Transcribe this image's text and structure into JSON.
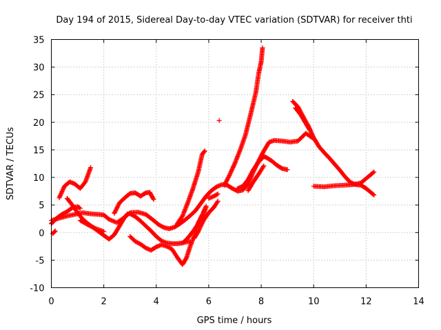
{
  "chart_data": {
    "type": "scatter",
    "title": "Day 194 of 2015, Sidereal Day-to-day VTEC variation (SDTVAR) for receiver thti",
    "xlabel": "GPS time / hours",
    "ylabel": "SDTVAR / TECUs",
    "xlim": [
      0,
      14
    ],
    "ylim": [
      -10,
      35
    ],
    "x_ticks": [
      0,
      2,
      4,
      6,
      8,
      10,
      12,
      14
    ],
    "y_ticks": [
      -10,
      -5,
      0,
      5,
      10,
      15,
      20,
      25,
      30,
      35
    ],
    "grid": true,
    "marker": "+",
    "color": "#ff0000",
    "series": [
      {
        "points": [
          [
            0.0,
            2.2
          ],
          [
            0.3,
            2.6
          ],
          [
            0.6,
            3.0
          ],
          [
            0.9,
            3.3
          ],
          [
            1.2,
            3.6
          ],
          [
            1.5,
            3.4
          ],
          [
            1.8,
            3.3
          ],
          [
            2.0,
            3.2
          ],
          [
            2.2,
            2.4
          ],
          [
            2.5,
            1.8
          ],
          [
            2.8,
            2.8
          ],
          [
            3.0,
            3.6
          ],
          [
            3.3,
            3.7
          ],
          [
            3.6,
            3.3
          ],
          [
            3.9,
            2.2
          ],
          [
            4.1,
            1.4
          ],
          [
            4.3,
            0.9
          ],
          [
            4.5,
            0.7
          ],
          [
            4.7,
            1.0
          ],
          [
            4.9,
            1.6
          ],
          [
            5.1,
            2.3
          ],
          [
            5.3,
            3.1
          ],
          [
            5.5,
            4.0
          ],
          [
            5.7,
            5.3
          ],
          [
            5.9,
            6.6
          ],
          [
            6.1,
            7.6
          ],
          [
            6.3,
            8.3
          ],
          [
            6.5,
            8.7
          ],
          [
            6.7,
            8.6
          ],
          [
            6.9,
            8.0
          ],
          [
            7.1,
            7.5
          ],
          [
            7.3,
            7.7
          ],
          [
            7.5,
            8.8
          ],
          [
            7.7,
            11.0
          ],
          [
            7.9,
            13.0
          ],
          [
            8.1,
            14.8
          ],
          [
            8.3,
            16.4
          ],
          [
            8.5,
            16.7
          ],
          [
            8.8,
            16.6
          ],
          [
            9.1,
            16.4
          ],
          [
            9.4,
            16.6
          ],
          [
            9.7,
            18.0
          ],
          [
            10.0,
            17.0
          ]
        ]
      },
      {
        "points": [
          [
            0.3,
            6.3
          ],
          [
            0.5,
            8.4
          ],
          [
            0.7,
            9.2
          ],
          [
            0.9,
            8.8
          ],
          [
            1.1,
            8.0
          ],
          [
            1.3,
            9.2
          ],
          [
            1.5,
            11.8
          ]
        ]
      },
      {
        "points": [
          [
            0.0,
            1.6
          ],
          [
            0.2,
            2.6
          ],
          [
            0.4,
            3.3
          ],
          [
            0.6,
            3.8
          ],
          [
            0.8,
            4.5
          ],
          [
            1.0,
            4.7
          ],
          [
            1.1,
            4.4
          ]
        ]
      },
      {
        "points": [
          [
            0.05,
            -0.2
          ],
          [
            0.15,
            0.3
          ]
        ]
      },
      {
        "points": [
          [
            0.6,
            6.2
          ],
          [
            0.8,
            5.0
          ],
          [
            1.0,
            3.6
          ],
          [
            1.2,
            2.4
          ],
          [
            1.4,
            1.6
          ],
          [
            1.6,
            0.9
          ],
          [
            1.8,
            0.2
          ],
          [
            2.0,
            -0.5
          ],
          [
            2.2,
            -1.2
          ],
          [
            2.4,
            -0.4
          ],
          [
            2.6,
            1.2
          ],
          [
            2.8,
            2.8
          ],
          [
            2.9,
            3.4
          ]
        ]
      },
      {
        "points": [
          [
            1.1,
            2.2
          ],
          [
            1.4,
            1.4
          ],
          [
            1.7,
            0.7
          ],
          [
            2.0,
            0.2
          ]
        ]
      },
      {
        "points": [
          [
            2.4,
            3.5
          ],
          [
            2.6,
            5.4
          ],
          [
            2.8,
            6.3
          ],
          [
            3.0,
            7.1
          ],
          [
            3.2,
            7.2
          ],
          [
            3.4,
            6.6
          ],
          [
            3.6,
            7.2
          ],
          [
            3.75,
            7.3
          ],
          [
            3.9,
            6.0
          ]
        ]
      },
      {
        "points": [
          [
            3.0,
            3.4
          ],
          [
            3.2,
            2.9
          ],
          [
            3.4,
            2.1
          ],
          [
            3.6,
            1.2
          ],
          [
            3.8,
            0.3
          ],
          [
            4.0,
            -0.7
          ],
          [
            4.2,
            -1.5
          ],
          [
            4.4,
            -1.9
          ],
          [
            4.6,
            -2.0
          ],
          [
            4.8,
            -2.0
          ],
          [
            5.0,
            -1.9
          ],
          [
            5.2,
            -1.0
          ],
          [
            5.4,
            0.2
          ],
          [
            5.6,
            1.6
          ],
          [
            5.8,
            3.4
          ],
          [
            5.9,
            4.6
          ]
        ]
      },
      {
        "points": [
          [
            3.0,
            -0.7
          ],
          [
            3.2,
            -1.6
          ],
          [
            3.4,
            -2.1
          ],
          [
            3.6,
            -2.8
          ],
          [
            3.8,
            -3.2
          ],
          [
            4.0,
            -2.6
          ],
          [
            4.2,
            -2.2
          ],
          [
            4.4,
            -2.5
          ],
          [
            4.6,
            -3.0
          ],
          [
            4.8,
            -4.5
          ],
          [
            5.0,
            -5.8
          ],
          [
            5.15,
            -4.6
          ],
          [
            5.3,
            -2.4
          ],
          [
            5.45,
            -0.6
          ],
          [
            5.6,
            1.8
          ],
          [
            5.75,
            3.2
          ],
          [
            5.9,
            4.8
          ]
        ]
      },
      {
        "points": [
          [
            4.8,
            1.6
          ],
          [
            5.0,
            3.0
          ],
          [
            5.2,
            5.4
          ],
          [
            5.4,
            8.0
          ],
          [
            5.6,
            11.0
          ],
          [
            5.75,
            14.2
          ],
          [
            5.85,
            14.8
          ]
        ]
      },
      {
        "points": [
          [
            5.05,
            -1.8
          ],
          [
            5.3,
            -1.6
          ]
        ]
      },
      {
        "points": [
          [
            5.45,
            -1.0
          ],
          [
            5.6,
            0.2
          ],
          [
            5.8,
            2.2
          ],
          [
            6.0,
            3.6
          ],
          [
            6.2,
            4.6
          ],
          [
            6.35,
            5.7
          ]
        ]
      },
      {
        "points": [
          [
            6.0,
            6.2
          ],
          [
            6.2,
            6.6
          ],
          [
            6.35,
            7.0
          ]
        ]
      },
      {
        "points": [
          [
            6.4,
            20.3
          ]
        ]
      },
      {
        "points": [
          [
            6.6,
            8.6
          ],
          [
            6.8,
            10.5
          ],
          [
            7.0,
            12.6
          ],
          [
            7.2,
            15.0
          ],
          [
            7.4,
            17.7
          ],
          [
            7.6,
            21.5
          ],
          [
            7.8,
            25.5
          ],
          [
            7.9,
            28.8
          ],
          [
            8.0,
            31.0
          ],
          [
            8.05,
            33.5
          ]
        ]
      },
      {
        "points": [
          [
            7.1,
            8.0
          ],
          [
            7.3,
            8.4
          ],
          [
            7.5,
            9.6
          ],
          [
            7.7,
            11.4
          ],
          [
            7.9,
            12.8
          ],
          [
            8.1,
            13.8
          ],
          [
            8.2,
            13.6
          ],
          [
            8.4,
            13.0
          ],
          [
            8.6,
            12.2
          ],
          [
            8.8,
            11.6
          ],
          [
            9.0,
            11.4
          ]
        ]
      },
      {
        "points": [
          [
            7.5,
            7.6
          ],
          [
            7.7,
            9.2
          ],
          [
            7.9,
            10.6
          ],
          [
            8.1,
            12.1
          ]
        ]
      },
      {
        "points": [
          [
            9.2,
            23.8
          ],
          [
            9.4,
            22.8
          ],
          [
            9.6,
            21.0
          ],
          [
            9.8,
            19.3
          ],
          [
            10.0,
            17.2
          ],
          [
            10.2,
            15.6
          ],
          [
            10.4,
            14.5
          ],
          [
            10.6,
            13.5
          ],
          [
            10.8,
            12.4
          ],
          [
            11.0,
            11.3
          ],
          [
            11.2,
            10.1
          ],
          [
            11.4,
            9.1
          ],
          [
            11.6,
            8.7
          ],
          [
            11.8,
            8.6
          ],
          [
            12.0,
            8.0
          ],
          [
            12.2,
            7.2
          ],
          [
            12.3,
            6.8
          ]
        ]
      },
      {
        "points": [
          [
            9.3,
            22.6
          ],
          [
            9.5,
            21.4
          ],
          [
            9.7,
            19.8
          ],
          [
            9.85,
            18.6
          ]
        ]
      },
      {
        "points": [
          [
            10.0,
            8.4
          ],
          [
            10.4,
            8.3
          ],
          [
            10.8,
            8.5
          ],
          [
            11.2,
            8.6
          ],
          [
            11.5,
            8.7
          ],
          [
            11.8,
            9.0
          ],
          [
            12.0,
            9.8
          ],
          [
            12.2,
            10.6
          ],
          [
            12.3,
            11.0
          ]
        ]
      }
    ]
  }
}
